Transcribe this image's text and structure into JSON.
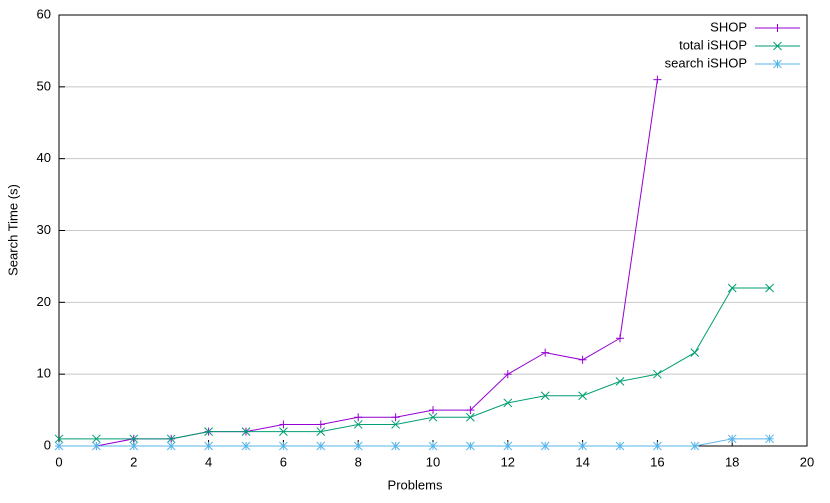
{
  "chart_data": {
    "type": "line",
    "xlabel": "Problems",
    "ylabel": "Search Time (s)",
    "x": [
      0,
      1,
      2,
      3,
      4,
      5,
      6,
      7,
      8,
      9,
      10,
      11,
      12,
      13,
      14,
      15,
      16,
      17,
      18,
      19
    ],
    "series": [
      {
        "name": "SHOP",
        "color": "#9400d3",
        "marker": "+",
        "values": [
          0,
          0,
          1,
          1,
          2,
          2,
          3,
          3,
          4,
          4,
          5,
          5,
          10,
          13,
          12,
          15,
          51,
          null,
          null,
          null
        ]
      },
      {
        "name": "total iSHOP",
        "color": "#009e73",
        "marker": "x",
        "values": [
          1,
          1,
          1,
          1,
          2,
          2,
          2,
          2,
          3,
          3,
          4,
          4,
          6,
          7,
          7,
          9,
          10,
          13,
          22,
          22
        ]
      },
      {
        "name": "search iSHOP",
        "color": "#56b4e9",
        "marker": "*",
        "values": [
          0,
          0,
          0,
          0,
          0,
          0,
          0,
          0,
          0,
          0,
          0,
          0,
          0,
          0,
          0,
          0,
          0,
          0,
          1,
          1
        ]
      }
    ],
    "xlim": [
      0,
      20
    ],
    "xticks": [
      0,
      2,
      4,
      6,
      8,
      10,
      12,
      14,
      16,
      18,
      20
    ],
    "ylim": [
      0,
      60
    ],
    "yticks": [
      0,
      10,
      20,
      30,
      40,
      50,
      60
    ],
    "grid": "y",
    "legend": "top-right"
  }
}
